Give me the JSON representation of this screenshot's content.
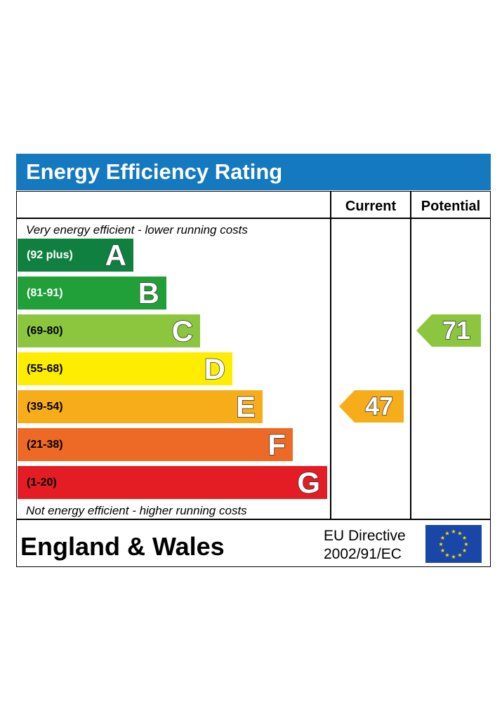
{
  "header": {
    "title": "Energy Efficiency Rating",
    "bg_color": "#1479bf"
  },
  "columns": {
    "current": "Current",
    "potential": "Potential"
  },
  "notes": {
    "top": "Very energy efficient - lower running costs",
    "bottom": "Not energy efficient - higher running costs"
  },
  "chart_data": {
    "type": "bar",
    "categories": [
      "A",
      "B",
      "C",
      "D",
      "E",
      "F",
      "G"
    ],
    "ranges": [
      "(92 plus)",
      "(81-91)",
      "(69-80)",
      "(55-68)",
      "(39-54)",
      "(21-38)",
      "(1-20)"
    ],
    "colors": [
      "#108040",
      "#21a03a",
      "#8cc63f",
      "#ffed00",
      "#f7ad1a",
      "#ec6a25",
      "#e31d23"
    ],
    "range_text_colors": [
      "#ffffff",
      "#ffffff",
      "#000000",
      "#000000",
      "#000000",
      "#000000",
      "#000000"
    ],
    "current": {
      "value": 47,
      "band": "E",
      "color": "#f7ad1a"
    },
    "potential": {
      "value": 71,
      "band": "C",
      "color": "#8cc63f"
    }
  },
  "footer": {
    "country": "England & Wales",
    "directive_line1": "EU Directive",
    "directive_line2": "2002/91/EC"
  }
}
